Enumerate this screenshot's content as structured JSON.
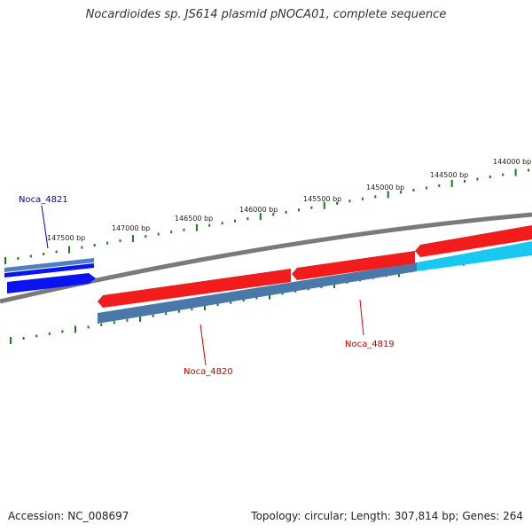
{
  "title": "Nocardioides sp. JS614 plasmid pNOCA01, complete sequence",
  "colors": {
    "backbone": "#7a7a7a",
    "tick": "#1a7a1a",
    "forward_gene": "#0a14ef",
    "forward_gene_light": "#4e7fc0",
    "reverse_gene": "#f11c1c",
    "reverse_gene_light": "#4a78a8",
    "reverse_gene_highlight": "#18c8f0",
    "label_forward": "#0000cc",
    "label_reverse": "#cc0000"
  },
  "ticks": [
    "147500 bp",
    "147000 bp",
    "146500 bp",
    "146000 bp",
    "145500 bp",
    "145000 bp",
    "144500 bp",
    "144000 bp"
  ],
  "genes": [
    {
      "name": "Noca_4821",
      "strand": "forward"
    },
    {
      "name": "Noca_4820",
      "strand": "reverse"
    },
    {
      "name": "Noca_4819",
      "strand": "reverse"
    }
  ],
  "footer": {
    "accession": "Accession: NC_008697",
    "topology": "Topology: circular; Length: 307,814 bp; Genes: 264"
  }
}
